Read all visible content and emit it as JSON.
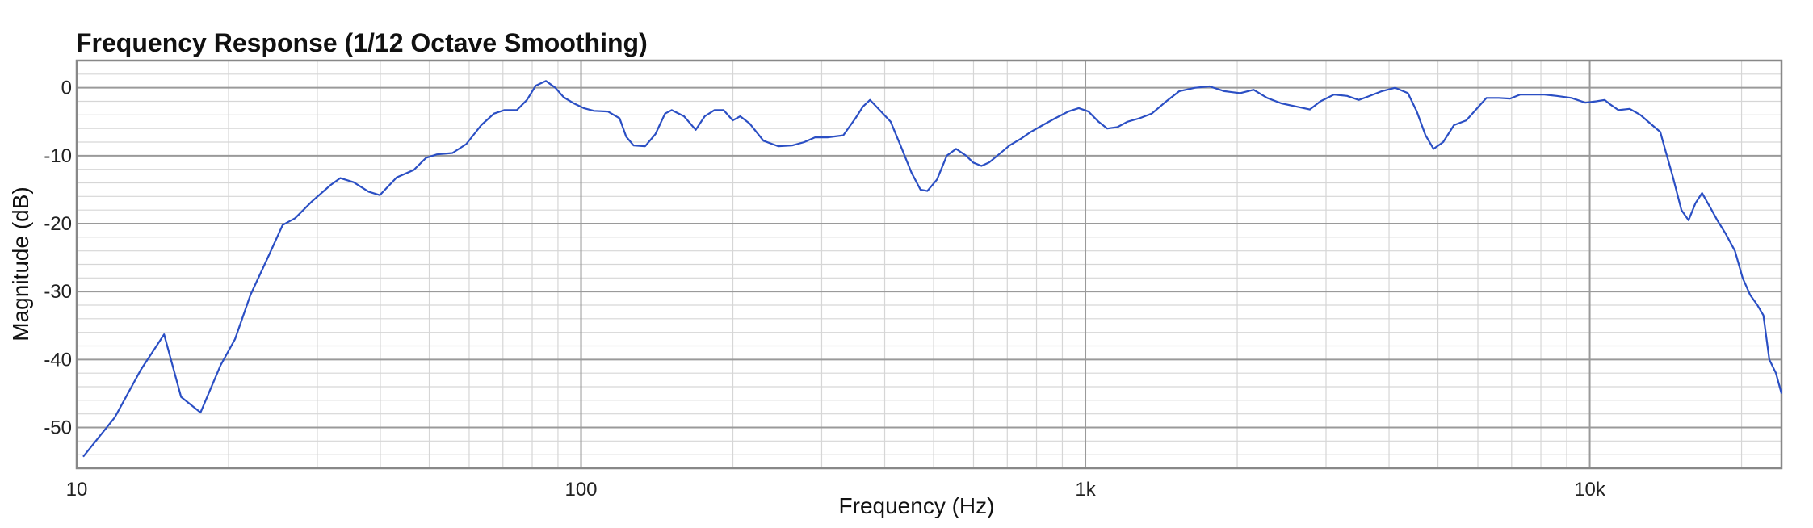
{
  "chart_data": {
    "type": "line",
    "title": "Frequency Response (1/12 Octave Smoothing)",
    "xlabel": "Frequency (Hz)",
    "ylabel": "Magnitude (dB)",
    "xscale": "log",
    "xlim": [
      10,
      24000
    ],
    "ylim": [
      -56,
      4
    ],
    "grid": true,
    "x_ticks": [
      {
        "value": 10,
        "label": "10"
      },
      {
        "value": 100,
        "label": "100"
      },
      {
        "value": 1000,
        "label": "1k"
      },
      {
        "value": 10000,
        "label": "10k"
      }
    ],
    "y_ticks": [
      {
        "value": 0,
        "label": "0"
      },
      {
        "value": -10,
        "label": "-10"
      },
      {
        "value": -20,
        "label": "-20"
      },
      {
        "value": -30,
        "label": "-30"
      },
      {
        "value": -40,
        "label": "-40"
      },
      {
        "value": -50,
        "label": "-50"
      }
    ],
    "colors": {
      "line": "#2b4fc4",
      "grid_major": "#9a9a9a",
      "grid_minor": "#d6d6d6",
      "frame": "#888888"
    },
    "series": [
      {
        "points": [
          [
            10.3,
            -54.3
          ],
          [
            11.9,
            -48.5
          ],
          [
            13.4,
            -41.5
          ],
          [
            14.9,
            -36.3
          ],
          [
            16.1,
            -45.5
          ],
          [
            17.6,
            -47.8
          ],
          [
            19.3,
            -40.8
          ],
          [
            20.6,
            -37.0
          ],
          [
            22.1,
            -30.5
          ],
          [
            24.0,
            -24.8
          ],
          [
            25.6,
            -20.2
          ],
          [
            27.1,
            -19.2
          ],
          [
            29.2,
            -16.8
          ],
          [
            31.9,
            -14.3
          ],
          [
            33.3,
            -13.3
          ],
          [
            35.4,
            -13.9
          ],
          [
            37.9,
            -15.3
          ],
          [
            39.9,
            -15.8
          ],
          [
            43.1,
            -13.2
          ],
          [
            46.6,
            -12.1
          ],
          [
            49.3,
            -10.3
          ],
          [
            51.8,
            -9.8
          ],
          [
            55.6,
            -9.6
          ],
          [
            59.2,
            -8.3
          ],
          [
            63.4,
            -5.5
          ],
          [
            67.2,
            -3.8
          ],
          [
            70.4,
            -3.3
          ],
          [
            74.6,
            -3.3
          ],
          [
            78.1,
            -1.8
          ],
          [
            81.3,
            0.3
          ],
          [
            85.2,
            1.0
          ],
          [
            88.9,
            0.0
          ],
          [
            92.4,
            -1.4
          ],
          [
            96.7,
            -2.3
          ],
          [
            101.2,
            -3.0
          ],
          [
            106.1,
            -3.4
          ],
          [
            113.0,
            -3.5
          ],
          [
            119.2,
            -4.5
          ],
          [
            122.9,
            -7.2
          ],
          [
            127.1,
            -8.5
          ],
          [
            134.0,
            -8.6
          ],
          [
            140.5,
            -6.8
          ],
          [
            146.7,
            -3.8
          ],
          [
            151.3,
            -3.3
          ],
          [
            160.0,
            -4.2
          ],
          [
            168.8,
            -6.2
          ],
          [
            175.9,
            -4.2
          ],
          [
            183.8,
            -3.3
          ],
          [
            191.7,
            -3.3
          ],
          [
            199.9,
            -4.8
          ],
          [
            206.8,
            -4.2
          ],
          [
            216.1,
            -5.3
          ],
          [
            230.0,
            -7.8
          ],
          [
            246.0,
            -8.6
          ],
          [
            262.0,
            -8.5
          ],
          [
            277.0,
            -8.0
          ],
          [
            291.0,
            -7.3
          ],
          [
            308.0,
            -7.3
          ],
          [
            331.0,
            -7.0
          ],
          [
            350.0,
            -4.5
          ],
          [
            362.0,
            -2.8
          ],
          [
            374.0,
            -1.8
          ],
          [
            391.0,
            -3.3
          ],
          [
            411.0,
            -5.0
          ],
          [
            430.0,
            -8.5
          ],
          [
            452.0,
            -12.5
          ],
          [
            471.0,
            -15.0
          ],
          [
            486.0,
            -15.2
          ],
          [
            508.0,
            -13.5
          ],
          [
            531.0,
            -10.0
          ],
          [
            554.0,
            -9.0
          ],
          [
            580.0,
            -10.0
          ],
          [
            599.0,
            -11.0
          ],
          [
            622.0,
            -11.5
          ],
          [
            644.0,
            -11.0
          ],
          [
            669.0,
            -10.0
          ],
          [
            707.0,
            -8.5
          ],
          [
            745.0,
            -7.5
          ],
          [
            779.0,
            -6.5
          ],
          [
            823.0,
            -5.5
          ],
          [
            871.0,
            -4.5
          ],
          [
            925.0,
            -3.5
          ],
          [
            970.0,
            -3.0
          ],
          [
            1014.0,
            -3.5
          ],
          [
            1062.0,
            -5.0
          ],
          [
            1105.0,
            -6.0
          ],
          [
            1157.0,
            -5.8
          ],
          [
            1211.0,
            -5.0
          ],
          [
            1280.0,
            -4.5
          ],
          [
            1354.0,
            -3.8
          ],
          [
            1447.0,
            -2.0
          ],
          [
            1536.0,
            -0.5
          ],
          [
            1650.0,
            0.0
          ],
          [
            1763.0,
            0.2
          ],
          [
            1885.0,
            -0.5
          ],
          [
            2025.0,
            -0.8
          ],
          [
            2155.0,
            -0.3
          ],
          [
            2293.0,
            -1.5
          ],
          [
            2446.0,
            -2.3
          ],
          [
            2628.0,
            -2.8
          ],
          [
            2786.0,
            -3.2
          ],
          [
            2925.0,
            -2.0
          ],
          [
            3112.0,
            -1.0
          ],
          [
            3303.0,
            -1.2
          ],
          [
            3483.0,
            -1.8
          ],
          [
            3632.0,
            -1.3
          ],
          [
            3872.0,
            -0.5
          ],
          [
            4115.0,
            0.0
          ],
          [
            4360.0,
            -0.8
          ],
          [
            4540.0,
            -3.5
          ],
          [
            4725.0,
            -7.0
          ],
          [
            4900.0,
            -9.0
          ],
          [
            5120.0,
            -8.0
          ],
          [
            5380.0,
            -5.5
          ],
          [
            5690.0,
            -4.8
          ],
          [
            5985.0,
            -3.0
          ],
          [
            6240.0,
            -1.5
          ],
          [
            6600.0,
            -1.5
          ],
          [
            6950.0,
            -1.6
          ],
          [
            7280.0,
            -1.0
          ],
          [
            7670.0,
            -1.0
          ],
          [
            8130.0,
            -1.0
          ],
          [
            8600.0,
            -1.2
          ],
          [
            9200.0,
            -1.5
          ],
          [
            9800.0,
            -2.2
          ],
          [
            10300.0,
            -2.0
          ],
          [
            10700.0,
            -1.8
          ],
          [
            11000.0,
            -2.5
          ],
          [
            11400.0,
            -3.3
          ],
          [
            12000.0,
            -3.1
          ],
          [
            12600.0,
            -4.0
          ],
          [
            13300.0,
            -5.5
          ],
          [
            13800.0,
            -6.5
          ],
          [
            14100.0,
            -9.0
          ],
          [
            14600.0,
            -13.0
          ],
          [
            15200.0,
            -18.0
          ],
          [
            15700.0,
            -19.5
          ],
          [
            16200.0,
            -17.0
          ],
          [
            16700.0,
            -15.5
          ],
          [
            17300.0,
            -17.5
          ],
          [
            17900.0,
            -19.5
          ],
          [
            18600.0,
            -21.5
          ],
          [
            19400.0,
            -24.0
          ],
          [
            20100.0,
            -28.0
          ],
          [
            20800.0,
            -30.5
          ],
          [
            21500.0,
            -32.0
          ],
          [
            22100.0,
            -33.5
          ],
          [
            22700.0,
            -40.0
          ],
          [
            23400.0,
            -42.0
          ],
          [
            24000.0,
            -45.0
          ]
        ]
      }
    ]
  }
}
